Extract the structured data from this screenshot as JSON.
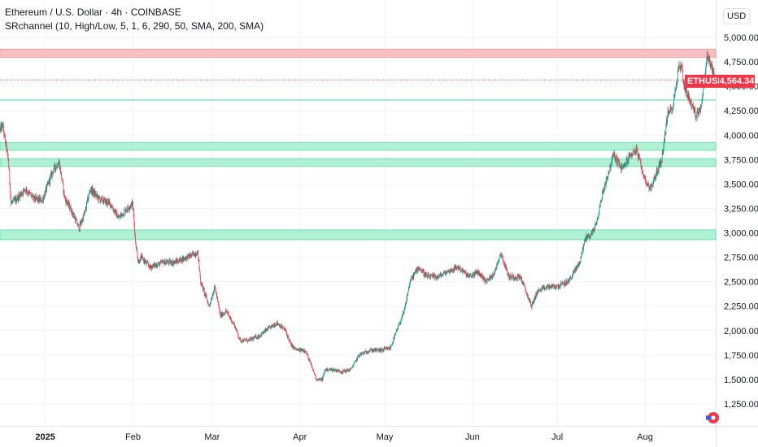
{
  "header": {
    "title": "Ethereum / U.S. Dollar · 4h · COINBASE",
    "indicator": "SRchannel (10, High/Low, 5, 1, 6, 290, 50, SMA, 200, SMA)"
  },
  "currency": "USD",
  "symbol_badge": "ETHUSD",
  "price_badge": "4,564.34",
  "colors": {
    "up": "#089981",
    "down": "#f23645",
    "resistance_zone": "#f8b9bd",
    "support_zone": "#a6f1cf"
  },
  "chart_data": {
    "type": "candlestick",
    "symbol": "ETHUSD",
    "interval": "4h",
    "exchange": "COINBASE",
    "ylim": [
      1150,
      5100
    ],
    "y_ticks": [
      "5,000.00",
      "4,750.00",
      "4,500.00",
      "4,250.00",
      "4,000.00",
      "3,750.00",
      "3,500.00",
      "3,250.00",
      "3,000.00",
      "2,750.00",
      "2,500.00",
      "2,250.00",
      "2,000.00",
      "1,750.00",
      "1,500.00",
      "1,250.00"
    ],
    "x_ticks": [
      {
        "label": "2025",
        "date": "2025-01-01",
        "bold": true
      },
      {
        "label": "Feb",
        "date": "2025-02-01",
        "bold": false
      },
      {
        "label": "Mar",
        "date": "2025-03-01",
        "bold": false
      },
      {
        "label": "Apr",
        "date": "2025-04-01",
        "bold": false
      },
      {
        "label": "May",
        "date": "2025-05-01",
        "bold": false
      },
      {
        "label": "Jun",
        "date": "2025-06-01",
        "bold": false
      },
      {
        "label": "Jul",
        "date": "2025-07-01",
        "bold": false
      },
      {
        "label": "Aug",
        "date": "2025-08-01",
        "bold": false
      }
    ],
    "x_start": "2024-12-16",
    "x_end": "2025-08-26",
    "last_price": 4564.34,
    "sr_zones": [
      {
        "kind": "resistance",
        "low": 4795,
        "high": 4880
      },
      {
        "kind": "support",
        "low": 3845,
        "high": 3925
      },
      {
        "kind": "support",
        "low": 3680,
        "high": 3760
      },
      {
        "kind": "support",
        "low": 2930,
        "high": 3030
      }
    ],
    "sr_lines": [
      {
        "kind": "support",
        "price": 4360
      }
    ],
    "price_path": [
      [
        "2024-12-16",
        4050
      ],
      [
        "2024-12-17",
        4100
      ],
      [
        "2024-12-19",
        3750
      ],
      [
        "2024-12-20",
        3300
      ],
      [
        "2024-12-22",
        3350
      ],
      [
        "2024-12-25",
        3450
      ],
      [
        "2024-12-28",
        3350
      ],
      [
        "2024-12-31",
        3330
      ],
      [
        "2025-01-04",
        3650
      ],
      [
        "2025-01-06",
        3720
      ],
      [
        "2025-01-08",
        3350
      ],
      [
        "2025-01-10",
        3250
      ],
      [
        "2025-01-13",
        3050
      ],
      [
        "2025-01-15",
        3200
      ],
      [
        "2025-01-17",
        3450
      ],
      [
        "2025-01-20",
        3350
      ],
      [
        "2025-01-24",
        3300
      ],
      [
        "2025-01-27",
        3150
      ],
      [
        "2025-01-30",
        3250
      ],
      [
        "2025-02-01",
        3300
      ],
      [
        "2025-02-02",
        2900
      ],
      [
        "2025-02-03",
        2700
      ],
      [
        "2025-02-04",
        2750
      ],
      [
        "2025-02-07",
        2650
      ],
      [
        "2025-02-12",
        2700
      ],
      [
        "2025-02-16",
        2700
      ],
      [
        "2025-02-20",
        2750
      ],
      [
        "2025-02-24",
        2800
      ],
      [
        "2025-02-25",
        2500
      ],
      [
        "2025-02-28",
        2250
      ],
      [
        "2025-03-02",
        2450
      ],
      [
        "2025-03-04",
        2150
      ],
      [
        "2025-03-06",
        2200
      ],
      [
        "2025-03-09",
        2050
      ],
      [
        "2025-03-11",
        1900
      ],
      [
        "2025-03-14",
        1900
      ],
      [
        "2025-03-18",
        1950
      ],
      [
        "2025-03-20",
        2000
      ],
      [
        "2025-03-24",
        2080
      ],
      [
        "2025-03-27",
        2000
      ],
      [
        "2025-03-29",
        1850
      ],
      [
        "2025-03-31",
        1800
      ],
      [
        "2025-04-03",
        1800
      ],
      [
        "2025-04-07",
        1500
      ],
      [
        "2025-04-09",
        1500
      ],
      [
        "2025-04-10",
        1600
      ],
      [
        "2025-04-13",
        1600
      ],
      [
        "2025-04-16",
        1580
      ],
      [
        "2025-04-19",
        1600
      ],
      [
        "2025-04-22",
        1750
      ],
      [
        "2025-04-26",
        1800
      ],
      [
        "2025-04-30",
        1800
      ],
      [
        "2025-05-03",
        1820
      ],
      [
        "2025-05-08",
        2200
      ],
      [
        "2025-05-10",
        2500
      ],
      [
        "2025-05-13",
        2650
      ],
      [
        "2025-05-16",
        2550
      ],
      [
        "2025-05-20",
        2550
      ],
      [
        "2025-05-23",
        2600
      ],
      [
        "2025-05-27",
        2650
      ],
      [
        "2025-05-31",
        2550
      ],
      [
        "2025-06-03",
        2600
      ],
      [
        "2025-06-06",
        2500
      ],
      [
        "2025-06-09",
        2600
      ],
      [
        "2025-06-11",
        2800
      ],
      [
        "2025-06-14",
        2550
      ],
      [
        "2025-06-18",
        2550
      ],
      [
        "2025-06-20",
        2400
      ],
      [
        "2025-06-22",
        2250
      ],
      [
        "2025-06-24",
        2400
      ],
      [
        "2025-06-28",
        2450
      ],
      [
        "2025-07-01",
        2450
      ],
      [
        "2025-07-05",
        2500
      ],
      [
        "2025-07-09",
        2700
      ],
      [
        "2025-07-11",
        2950
      ],
      [
        "2025-07-13",
        2980
      ],
      [
        "2025-07-15",
        3100
      ],
      [
        "2025-07-17",
        3400
      ],
      [
        "2025-07-19",
        3600
      ],
      [
        "2025-07-21",
        3800
      ],
      [
        "2025-07-24",
        3650
      ],
      [
        "2025-07-27",
        3800
      ],
      [
        "2025-07-29",
        3850
      ],
      [
        "2025-08-01",
        3550
      ],
      [
        "2025-08-03",
        3450
      ],
      [
        "2025-08-05",
        3600
      ],
      [
        "2025-08-07",
        3750
      ],
      [
        "2025-08-09",
        4200
      ],
      [
        "2025-08-11",
        4300
      ],
      [
        "2025-08-13",
        4700
      ],
      [
        "2025-08-14",
        4700
      ],
      [
        "2025-08-15",
        4500
      ],
      [
        "2025-08-17",
        4350
      ],
      [
        "2025-08-19",
        4200
      ],
      [
        "2025-08-21",
        4300
      ],
      [
        "2025-08-23",
        4800
      ],
      [
        "2025-08-24",
        4750
      ],
      [
        "2025-08-26",
        4564
      ]
    ]
  }
}
